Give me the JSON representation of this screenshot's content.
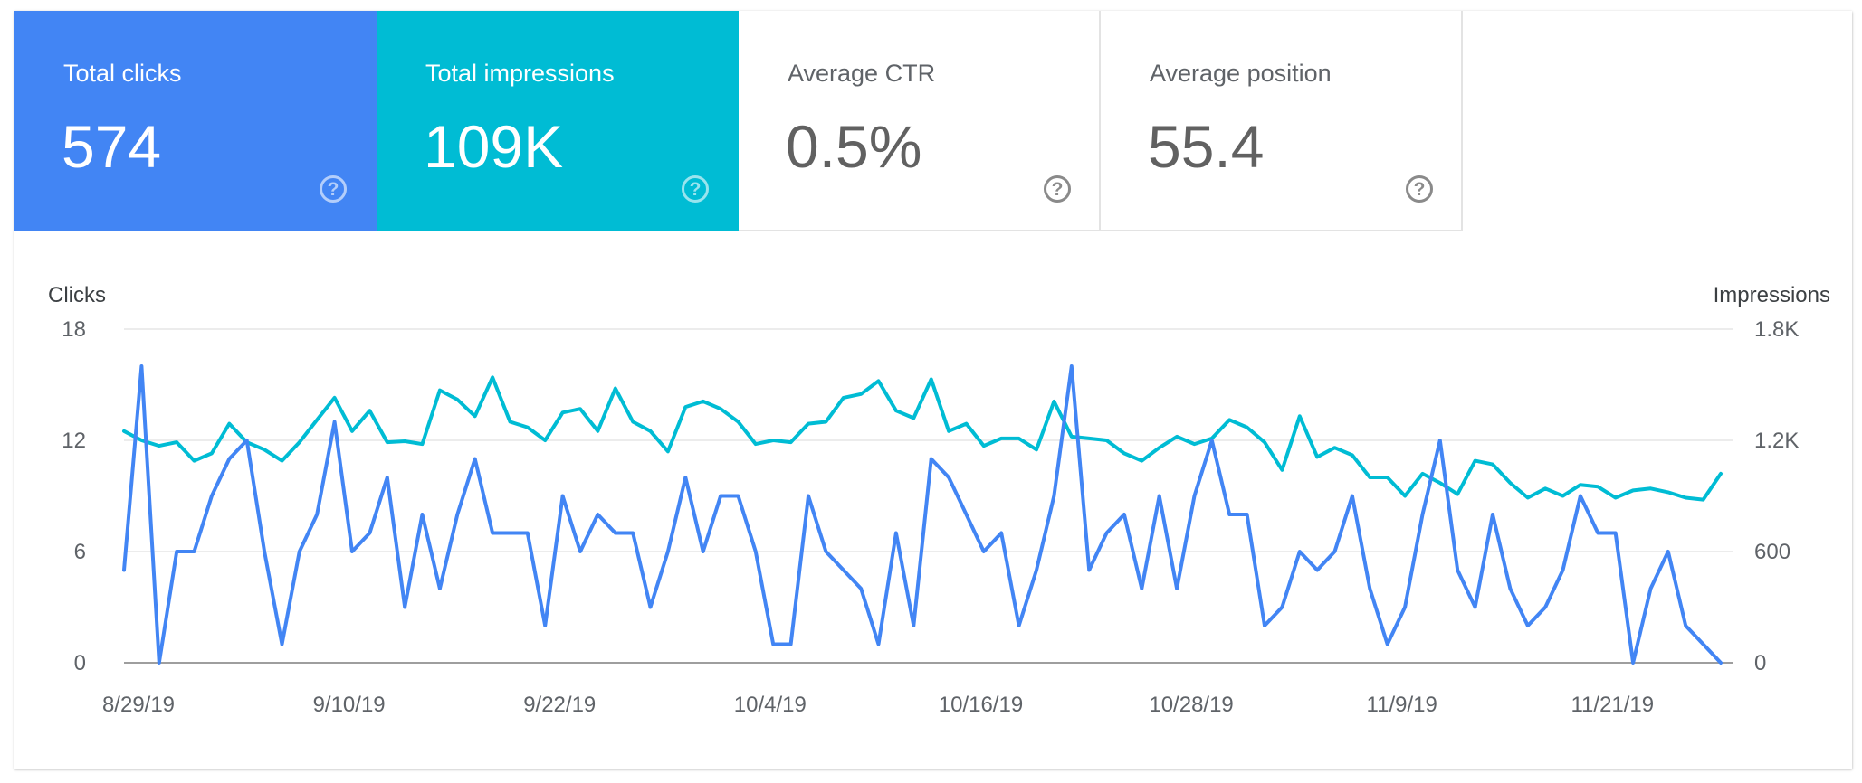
{
  "cards": [
    {
      "label": "Total clicks",
      "value": "574",
      "help": "?"
    },
    {
      "label": "Total impressions",
      "value": "109K",
      "help": "?"
    },
    {
      "label": "Average CTR",
      "value": "0.5%",
      "help": "?"
    },
    {
      "label": "Average position",
      "value": "55.4",
      "help": "?"
    }
  ],
  "colors": {
    "clicks": "#4285f4",
    "impressions": "#00bcd4",
    "grid": "#e6e6e6",
    "axis": "#9e9e9e"
  },
  "chart_data": {
    "type": "line",
    "left_axis": {
      "label": "Clicks",
      "ticks": [
        "0",
        "6",
        "12",
        "18"
      ],
      "ylim": [
        0,
        18
      ]
    },
    "right_axis": {
      "label": "Impressions",
      "ticks": [
        "0",
        "600",
        "1.2K",
        "1.8K"
      ],
      "ylim": [
        0,
        1800
      ]
    },
    "x_tick_labels": [
      "8/29/19",
      "9/10/19",
      "9/22/19",
      "10/4/19",
      "10/16/19",
      "10/28/19",
      "11/9/19",
      "11/21/19"
    ],
    "x_tick_index": [
      0,
      12,
      24,
      36,
      48,
      60,
      72,
      84
    ],
    "grid": true,
    "series": [
      {
        "name": "Clicks",
        "axis": "left",
        "values": [
          5,
          16,
          0,
          6,
          6,
          9,
          11,
          12,
          6,
          1,
          6,
          8,
          13,
          6,
          7,
          10,
          3,
          8,
          4,
          8,
          11,
          7,
          7,
          7,
          2,
          9,
          6,
          8,
          7,
          7,
          3,
          6,
          10,
          6,
          9,
          9,
          6,
          1,
          1,
          9,
          6,
          5,
          4,
          1,
          7,
          2,
          11,
          10,
          8,
          6,
          7,
          2,
          5,
          9,
          16,
          5,
          7,
          8,
          4,
          9,
          4,
          9,
          12,
          8,
          8,
          2,
          3,
          6,
          5,
          6,
          9,
          4,
          1,
          3,
          8,
          12,
          5,
          3,
          8,
          4,
          2,
          3,
          5,
          9,
          7,
          7,
          0,
          4,
          6,
          2,
          1,
          0
        ]
      },
      {
        "name": "Impressions",
        "axis": "right",
        "values": [
          1250,
          1200,
          1170,
          1190,
          1090,
          1130,
          1290,
          1190,
          1150,
          1090,
          1190,
          1310,
          1430,
          1250,
          1360,
          1190,
          1195,
          1180,
          1470,
          1420,
          1330,
          1540,
          1300,
          1270,
          1200,
          1350,
          1370,
          1250,
          1480,
          1300,
          1250,
          1140,
          1380,
          1410,
          1370,
          1300,
          1180,
          1200,
          1190,
          1290,
          1300,
          1430,
          1450,
          1520,
          1360,
          1320,
          1530,
          1250,
          1290,
          1170,
          1210,
          1210,
          1150,
          1410,
          1220,
          1210,
          1200,
          1130,
          1090,
          1160,
          1220,
          1180,
          1210,
          1310,
          1270,
          1190,
          1040,
          1330,
          1110,
          1160,
          1120,
          1000,
          1000,
          900,
          1020,
          970,
          910,
          1090,
          1070,
          970,
          890,
          940,
          900,
          960,
          950,
          890,
          930,
          940,
          920,
          890,
          880,
          1020
        ]
      }
    ]
  }
}
